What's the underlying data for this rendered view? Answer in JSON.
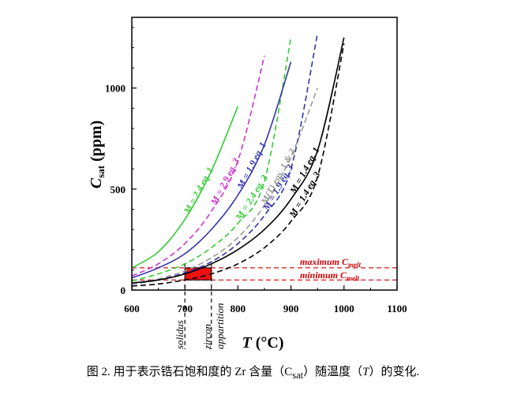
{
  "chart_data": {
    "type": "line",
    "xlabel": "T (°C)",
    "ylabel": "Csat (ppm)",
    "xlim": [
      600,
      1100
    ],
    "ylim": [
      0,
      1350
    ],
    "x_ticks": [
      600,
      700,
      800,
      900,
      1000,
      1100
    ],
    "y_ticks": [
      0,
      500,
      1000
    ],
    "series": [
      {
        "name": "M = 2.4 eq. 1",
        "color": "#33cc33",
        "dash": "solid",
        "x": [
          600,
          650,
          700,
          750,
          800
        ],
        "y": [
          110,
          190,
          350,
          590,
          910
        ]
      },
      {
        "name": "M = 2.9 eq. 3",
        "color": "#cc33cc",
        "dash": "dashed",
        "x": [
          600,
          650,
          700,
          750,
          800,
          850
        ],
        "y": [
          70,
          130,
          230,
          390,
          640,
          1160
        ]
      },
      {
        "name": "M = 2.4 eq. 3",
        "color": "#33cc33",
        "dash": "dashed",
        "x": [
          600,
          650,
          700,
          750,
          800,
          850,
          900
        ],
        "y": [
          45,
          80,
          130,
          210,
          330,
          540,
          1250
        ]
      },
      {
        "name": "M = 1.9 eq. 1",
        "color": "#3333aa",
        "dash": "solid",
        "x": [
          600,
          650,
          700,
          750,
          800,
          850,
          900
        ],
        "y": [
          60,
          110,
          180,
          300,
          470,
          720,
          1130
        ]
      },
      {
        "name": "M = 1.9 eq. 3",
        "color": "#3333aa",
        "dash": "dashed",
        "x": [
          600,
          650,
          700,
          750,
          800,
          850,
          900,
          950
        ],
        "y": [
          30,
          50,
          85,
          140,
          230,
          370,
          600,
          1270
        ]
      },
      {
        "name": "M(T) eqs. 1 & 2",
        "color": "#999999",
        "dash": "dashed",
        "x": [
          600,
          650,
          700,
          750,
          800,
          850,
          900,
          950
        ],
        "y": [
          30,
          55,
          95,
          160,
          260,
          420,
          660,
          1000
        ]
      },
      {
        "name": "M = 1.4 eq. 1",
        "color": "#000000",
        "dash": "solid",
        "x": [
          600,
          650,
          700,
          750,
          800,
          850,
          900,
          950,
          1000
        ],
        "y": [
          35,
          50,
          80,
          130,
          200,
          300,
          450,
          690,
          1250
        ]
      },
      {
        "name": "M = 1.4 eq. 3",
        "color": "#000000",
        "dash": "dashed",
        "x": [
          600,
          650,
          700,
          750,
          800,
          850,
          900,
          950,
          1000
        ],
        "y": [
          20,
          30,
          50,
          80,
          130,
          210,
          340,
          560,
          1220
        ]
      }
    ],
    "h_lines": [
      {
        "name": "maximum Cmelt",
        "y": 110,
        "color": "#cc0000"
      },
      {
        "name": "minimum Cmelt",
        "y": 50,
        "color": "#cc0000"
      }
    ],
    "v_lines": [
      {
        "name": "solidus",
        "x": 700
      },
      {
        "name": "zircon appartition",
        "x": 750
      }
    ],
    "region": {
      "x": [
        700,
        750
      ],
      "y": [
        50,
        110
      ],
      "color": "#ee1111"
    }
  },
  "labels": {
    "axis_x_letter": "T",
    "axis_x_unit": " (°C)",
    "axis_y_letter": "C",
    "axis_y_sub": "sat",
    "axis_y_unit": " (ppm)",
    "max_main": "maximum C",
    "max_sub": "melt",
    "min_main": "minimum C",
    "min_sub": "melt",
    "solidus": "solidus",
    "zircon": "zircon",
    "appartition": "appartition"
  },
  "caption": {
    "pre": "图 2. 用于表示锆石饱和度的 Zr 含量（C",
    "sub": "sat",
    "mid": "）随温度（",
    "t": "T",
    "post": "）的变化."
  }
}
